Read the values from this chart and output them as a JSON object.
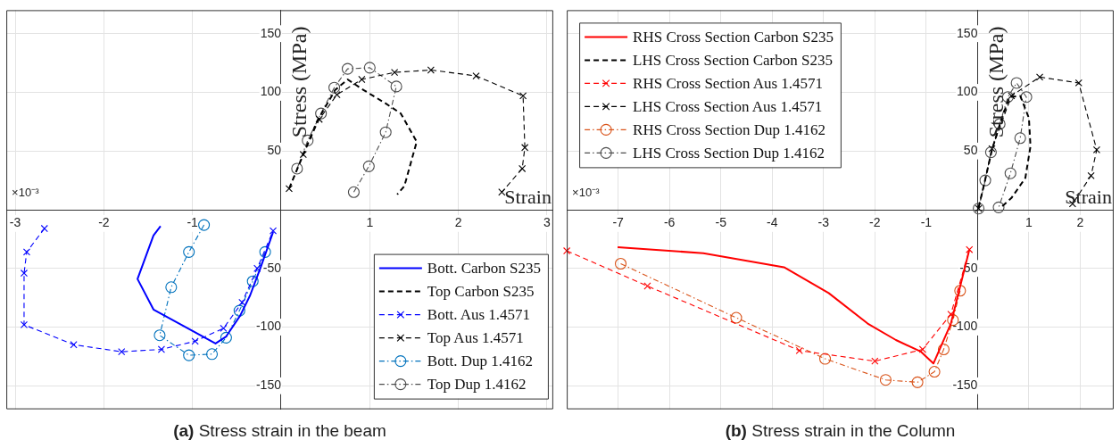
{
  "chart_data": [
    {
      "type": "line",
      "title": "(a) Stress strain in the beam",
      "xlabel": "Strain",
      "ylabel": "Stress (MPa)",
      "annotations": [
        "×10⁻³"
      ],
      "xlim": [
        -3.1,
        3.07
      ],
      "ylim": [
        -170,
        170
      ],
      "xticks": [
        -3,
        -2,
        -1,
        1,
        2,
        3
      ],
      "yticks": [
        -150,
        -100,
        -50,
        50,
        100,
        150
      ],
      "grid": true,
      "legend": "bottom right",
      "series": [
        {
          "name": "Bott. Carbon S235",
          "color": "#0000ff",
          "marker": "none",
          "line_style": "solid",
          "x": [
            -1.36,
            -1.44,
            -1.62,
            -1.44,
            -0.74,
            -0.62,
            -0.46,
            -0.35,
            -0.23,
            -0.09
          ],
          "values": [
            -14,
            -22,
            -59,
            -85,
            -114,
            -108,
            -90,
            -73,
            -49,
            -19
          ]
        },
        {
          "name": "Top Carbon S235",
          "color": "#000000",
          "marker": "none",
          "line_style": "dashed",
          "x": [
            0.09,
            0.25,
            0.41,
            0.61,
            0.75,
            0.93,
            1.17,
            1.35,
            1.53,
            1.39,
            1.31
          ],
          "values": [
            18,
            47,
            76,
            102,
            111,
            102,
            91,
            82,
            58,
            20,
            13
          ]
        },
        {
          "name": "Bott. Aus 1.4571",
          "color": "#0000ff",
          "marker": "cross",
          "line_style": "dashed",
          "x": [
            -2.67,
            -2.87,
            -2.9,
            -2.9,
            -2.34,
            -1.8,
            -1.35,
            -0.97,
            -0.65,
            -0.44,
            -0.27,
            -0.09
          ],
          "values": [
            -16,
            -36,
            -54,
            -98,
            -115,
            -121,
            -119,
            -112,
            -101,
            -79,
            -50,
            -18
          ]
        },
        {
          "name": "Top Aus 1.4571",
          "color": "#000000",
          "marker": "cross",
          "line_style": "dashed",
          "x": [
            0.09,
            0.25,
            0.43,
            0.63,
            0.91,
            1.28,
            1.69,
            2.2,
            2.73,
            2.75,
            2.72,
            2.49
          ],
          "values": [
            18,
            47,
            77,
            98,
            111,
            117,
            119,
            114,
            97,
            53,
            35,
            15
          ]
        },
        {
          "name": "Bott. Dup 1.4162",
          "color": "#0072bd",
          "marker": "circle",
          "line_style": "dashdot",
          "x": [
            -0.87,
            -1.04,
            -1.24,
            -1.37,
            -1.04,
            -0.78,
            -0.62,
            -0.47,
            -0.32,
            -0.18
          ],
          "values": [
            -13,
            -36,
            -66,
            -107,
            -124,
            -123,
            -109,
            -86,
            -61,
            -36
          ]
        },
        {
          "name": "Top Dup 1.4162",
          "color": "#4d4d4d",
          "marker": "circle",
          "line_style": "dashdot",
          "x": [
            0.18,
            0.3,
            0.45,
            0.6,
            0.75,
            1.0,
            1.3,
            1.18,
            0.99,
            0.82
          ],
          "values": [
            35,
            59,
            82,
            104,
            120,
            121,
            105,
            66,
            37,
            15
          ]
        }
      ]
    },
    {
      "type": "line",
      "title": "(b) Stress strain in the Column",
      "xlabel": "Strain",
      "ylabel": "Stress (MPa)",
      "annotations": [
        "×10⁻³"
      ],
      "xlim": [
        -8,
        2.65
      ],
      "ylim": [
        -170,
        170
      ],
      "xticks": [
        -7,
        -6,
        -5,
        -4,
        -3,
        -2,
        -1,
        1,
        2
      ],
      "yticks": [
        -150,
        -100,
        -50,
        50,
        100,
        150
      ],
      "grid": true,
      "legend": "top left",
      "series": [
        {
          "name": "RHS Cross Section Carbon S235",
          "color": "#ff0000",
          "marker": "none",
          "line_style": "solid",
          "x": [
            -7.01,
            -5.34,
            -3.77,
            -2.9,
            -2.14,
            -1.59,
            -1.1,
            -0.86,
            -0.52,
            -0.16
          ],
          "values": [
            -32,
            -37,
            -49,
            -71,
            -97,
            -111,
            -121,
            -131,
            -97,
            -34
          ]
        },
        {
          "name": "LHS Cross Section Carbon S235",
          "color": "#000000",
          "marker": "none",
          "line_style": "dashed",
          "x": [
            0.02,
            0.14,
            0.28,
            0.45,
            0.62,
            0.83,
            1.0,
            1.03,
            0.93,
            0.66,
            0.48
          ],
          "values": [
            2,
            24,
            51,
            75,
            96,
            97,
            78,
            54,
            27,
            10,
            3
          ]
        },
        {
          "name": "RHS Cross Section Aus 1.4571",
          "color": "#ff0000",
          "marker": "cross",
          "line_style": "dashed",
          "x": [
            -8,
            -6.43,
            -3.47,
            -2.0,
            -1.07,
            -0.52,
            -0.16
          ],
          "values": [
            -35,
            -65,
            -120,
            -129,
            -119,
            -89,
            -34
          ]
        },
        {
          "name": "LHS Cross Section Aus 1.4571",
          "color": "#000000",
          "marker": "cross",
          "line_style": "dashed",
          "x": [
            0.02,
            0.28,
            0.66,
            1.21,
            1.97,
            2.32,
            2.21,
            1.85
          ],
          "values": [
            1,
            52,
            97,
            113,
            108,
            51,
            29,
            5
          ]
        },
        {
          "name": "RHS Cross Section Dup 1.4162",
          "color": "#d95319",
          "marker": "circle",
          "line_style": "dashdot",
          "x": [
            -6.95,
            -4.7,
            -2.97,
            -1.79,
            -1.17,
            -0.84,
            -0.66,
            -0.48,
            -0.34
          ],
          "values": [
            -46,
            -92,
            -127,
            -145,
            -147,
            -138,
            -119,
            -94,
            -69
          ]
        },
        {
          "name": "LHS Cross Section Dup 1.4162",
          "color": "#4d4d4d",
          "marker": "circle",
          "line_style": "dashdot",
          "x": [
            0.02,
            0.15,
            0.26,
            0.43,
            0.59,
            0.76,
            0.95,
            0.83,
            0.64,
            0.41
          ],
          "values": [
            1,
            25,
            49,
            73,
            96,
            108,
            96,
            61,
            31,
            2
          ]
        }
      ]
    }
  ]
}
